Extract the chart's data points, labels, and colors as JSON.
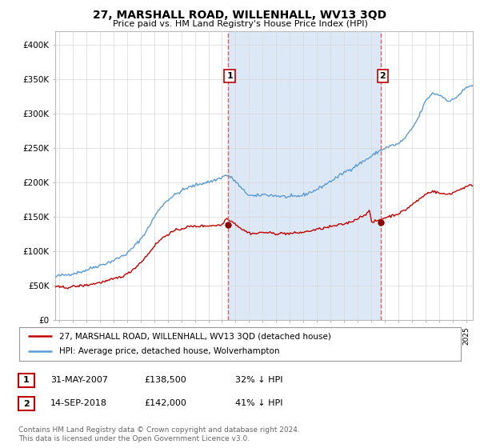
{
  "title": "27, MARSHALL ROAD, WILLENHALL, WV13 3QD",
  "subtitle": "Price paid vs. HM Land Registry's House Price Index (HPI)",
  "ylabel_ticks": [
    "£0",
    "£50K",
    "£100K",
    "£150K",
    "£200K",
    "£250K",
    "£300K",
    "£350K",
    "£400K"
  ],
  "ytick_values": [
    0,
    50000,
    100000,
    150000,
    200000,
    250000,
    300000,
    350000,
    400000
  ],
  "ylim": [
    0,
    420000
  ],
  "xlim_start": 1994.7,
  "xlim_end": 2025.5,
  "hpi_color": "#5b9bd5",
  "price_color": "#c00000",
  "dashed_line_color": "#e06060",
  "shade_color": "#dce8f5",
  "sale1_x": 2007.42,
  "sale1_y": 138500,
  "sale1_label": "1",
  "sale2_x": 2018.71,
  "sale2_y": 142000,
  "sale2_label": "2",
  "legend_line1": "27, MARSHALL ROAD, WILLENHALL, WV13 3QD (detached house)",
  "legend_line2": "HPI: Average price, detached house, Wolverhampton",
  "background_color": "#ffffff",
  "plot_bg_color": "#ffffff",
  "grid_color": "#d8d8d8"
}
